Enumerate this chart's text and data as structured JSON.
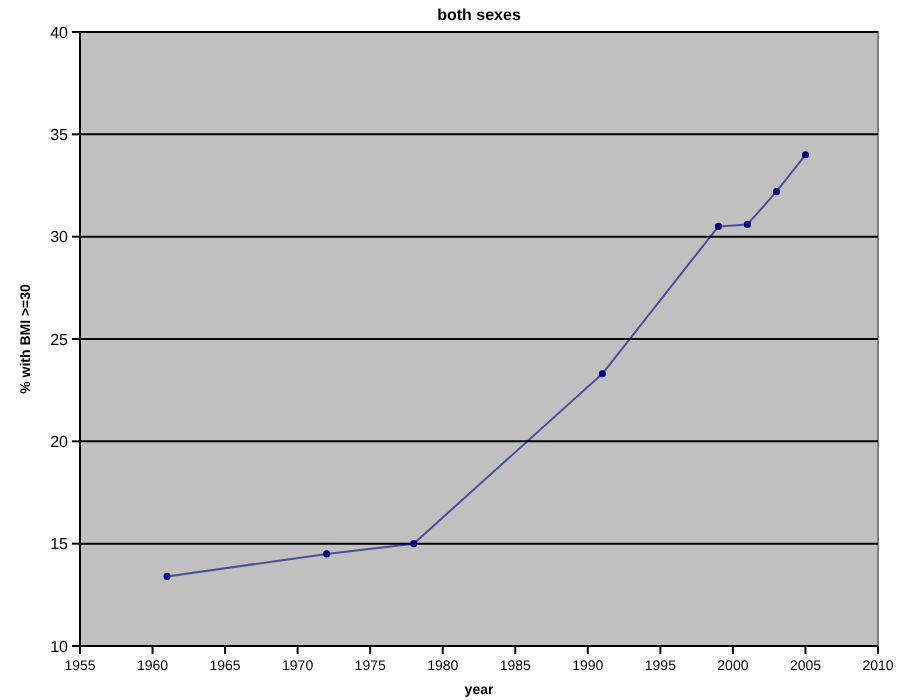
{
  "chart_data": {
    "type": "line",
    "title": "both sexes",
    "xlabel": "year",
    "ylabel": "% with BMI >=30",
    "x": [
      1961,
      1972,
      1978,
      1991,
      1999,
      2001,
      2003,
      2005
    ],
    "series": [
      {
        "color": "#000080",
        "values": [
          13.4,
          14.5,
          15.0,
          23.3,
          30.5,
          30.6,
          32.2,
          34.0
        ]
      }
    ],
    "xlim": [
      1955,
      2010
    ],
    "xticks": [
      1955,
      1960,
      1965,
      1970,
      1975,
      1980,
      1985,
      1990,
      1995,
      2000,
      2005,
      2010
    ],
    "ylim": [
      10,
      40
    ],
    "yticks": [
      10,
      15,
      20,
      25,
      30,
      35,
      40
    ],
    "grid": "y",
    "marker": "circle"
  }
}
